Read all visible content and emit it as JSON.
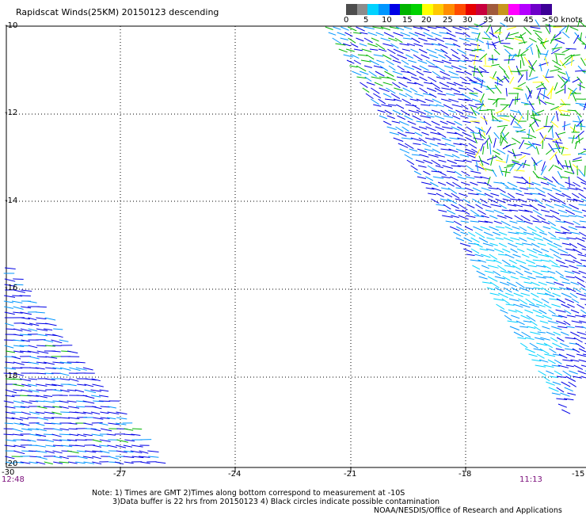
{
  "title": "Rapidscat Winds(25KM) 20150123 descending",
  "legend": {
    "labels": [
      "0",
      "5",
      "10",
      "15",
      "20",
      "25",
      "30",
      "35",
      "40",
      "45",
      ">50 knots"
    ],
    "colors": [
      "#4d4d4d",
      "#8c8c8c",
      "#00d2ff",
      "#0096ff",
      "#0000e6",
      "#00b400",
      "#00d200",
      "#ffff00",
      "#ffc800",
      "#ff8c00",
      "#ff4b00",
      "#e60000",
      "#c8003c",
      "#a05a3c",
      "#c8961e",
      "#ff00ff",
      "#b400ff",
      "#6e00c8",
      "#3c0096"
    ]
  },
  "axes": {
    "x_labels": [
      "-30",
      "-27",
      "-24",
      "-21",
      "-18",
      "-15"
    ],
    "y_labels": [
      "-10",
      "-12",
      "-14",
      "-16",
      "-18",
      "-20"
    ]
  },
  "times": {
    "left": "12:48",
    "right": "11:13"
  },
  "notes": {
    "line1": "Note: 1) Times are GMT 2)Times along bottom correspond to measurement at -10S",
    "line2": "3)Data buffer is 22 hrs from 20150123 4) Black circles indicate possible contamination"
  },
  "credit": "NOAA/NESDIS/Office of Research and Applications"
}
